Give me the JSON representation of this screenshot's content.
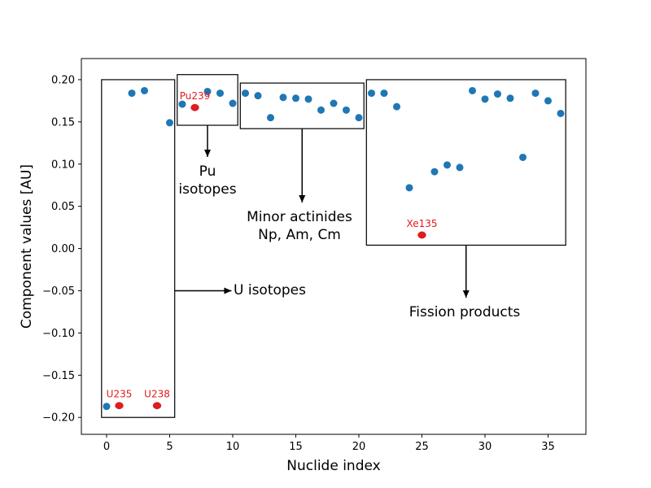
{
  "chart_data": {
    "type": "scatter",
    "title": "",
    "xlabel": "Nuclide index",
    "ylabel": "Component values [AU]",
    "xlim": [
      -2,
      38
    ],
    "ylim": [
      -0.22,
      0.225
    ],
    "xticks": [
      0,
      5,
      10,
      15,
      20,
      25,
      30,
      35
    ],
    "yticks": [
      -0.2,
      -0.15,
      -0.1,
      -0.05,
      0.0,
      0.05,
      0.1,
      0.15,
      0.2
    ],
    "grid": false,
    "legend": "none",
    "colors": {
      "points": "#1f77b4",
      "highlight": "#e41a1c",
      "boxes": "#000000"
    },
    "points": [
      {
        "x": 0,
        "y": -0.187
      },
      {
        "x": 1,
        "y": -0.186
      },
      {
        "x": 2,
        "y": 0.184
      },
      {
        "x": 3,
        "y": 0.187
      },
      {
        "x": 4,
        "y": -0.186
      },
      {
        "x": 5,
        "y": 0.149
      },
      {
        "x": 6,
        "y": 0.171
      },
      {
        "x": 7,
        "y": 0.167
      },
      {
        "x": 8,
        "y": 0.186
      },
      {
        "x": 9,
        "y": 0.184
      },
      {
        "x": 10,
        "y": 0.172
      },
      {
        "x": 11,
        "y": 0.184
      },
      {
        "x": 12,
        "y": 0.181
      },
      {
        "x": 13,
        "y": 0.155
      },
      {
        "x": 14,
        "y": 0.179
      },
      {
        "x": 15,
        "y": 0.178
      },
      {
        "x": 16,
        "y": 0.177
      },
      {
        "x": 17,
        "y": 0.164
      },
      {
        "x": 18,
        "y": 0.172
      },
      {
        "x": 19,
        "y": 0.164
      },
      {
        "x": 20,
        "y": 0.155
      },
      {
        "x": 21,
        "y": 0.184
      },
      {
        "x": 22,
        "y": 0.184
      },
      {
        "x": 23,
        "y": 0.168
      },
      {
        "x": 24,
        "y": 0.072
      },
      {
        "x": 25,
        "y": 0.016
      },
      {
        "x": 26,
        "y": 0.091
      },
      {
        "x": 27,
        "y": 0.099
      },
      {
        "x": 28,
        "y": 0.096
      },
      {
        "x": 29,
        "y": 0.187
      },
      {
        "x": 30,
        "y": 0.177
      },
      {
        "x": 31,
        "y": 0.183
      },
      {
        "x": 32,
        "y": 0.178
      },
      {
        "x": 33,
        "y": 0.108
      },
      {
        "x": 34,
        "y": 0.184
      },
      {
        "x": 35,
        "y": 0.175
      },
      {
        "x": 36,
        "y": 0.16
      }
    ],
    "highlighted": [
      {
        "label": "U235",
        "x": 1,
        "y": -0.186
      },
      {
        "label": "U238",
        "x": 4,
        "y": -0.186
      },
      {
        "label": "Pu239",
        "x": 7,
        "y": 0.167
      },
      {
        "label": "Xe135",
        "x": 25,
        "y": 0.016
      }
    ],
    "group_boxes": [
      {
        "label": "U isotopes",
        "x0": -0.4,
        "x1": 5.4,
        "y0": -0.2,
        "y1": 0.2
      },
      {
        "label": "Pu isotopes",
        "x0": 5.6,
        "x1": 10.4,
        "y0": 0.146,
        "y1": 0.206
      },
      {
        "label": "Minor actinides Np, Am, Cm",
        "x0": 10.6,
        "x1": 20.4,
        "y0": 0.142,
        "y1": 0.196
      },
      {
        "label": "Fission products",
        "x0": 20.6,
        "x1": 36.4,
        "y0": 0.004,
        "y1": 0.2
      }
    ],
    "annotations": [
      {
        "id": "u",
        "lines": [
          "U isotopes"
        ]
      },
      {
        "id": "pu",
        "lines": [
          "Pu",
          "isotopes"
        ]
      },
      {
        "id": "ma",
        "lines": [
          "Minor actinides",
          "Np, Am, Cm"
        ]
      },
      {
        "id": "fp",
        "lines": [
          "Fission products"
        ]
      }
    ]
  }
}
